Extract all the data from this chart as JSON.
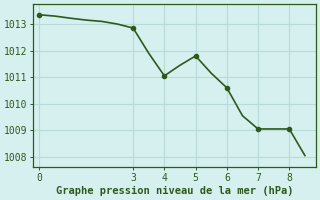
{
  "x": [
    0,
    0.5,
    1.0,
    1.5,
    2.0,
    2.5,
    3.0,
    3.5,
    4.0,
    4.5,
    5.0,
    5.5,
    6.0,
    6.5,
    7.0,
    7.5,
    8.0,
    8.5
  ],
  "y": [
    1013.35,
    1013.3,
    1013.22,
    1013.15,
    1013.1,
    1013.0,
    1012.85,
    1011.9,
    1011.05,
    1011.45,
    1011.8,
    1011.15,
    1010.6,
    1009.55,
    1009.05,
    1009.05,
    1009.05,
    1008.05
  ],
  "marker_x": [
    0,
    3,
    4,
    5,
    6,
    7,
    8
  ],
  "marker_y": [
    1013.35,
    1012.85,
    1011.05,
    1011.8,
    1010.6,
    1009.05,
    1009.05
  ],
  "line_color": "#2d5a1b",
  "marker_color": "#2d5a1b",
  "bg_color": "#d6f0ef",
  "grid_color": "#b8dbd8",
  "spine_color": "#2d5a1b",
  "xlabel": "Graphe pression niveau de la mer (hPa)",
  "xlabel_fontsize": 7.5,
  "yticks": [
    1008,
    1009,
    1010,
    1011,
    1012,
    1013
  ],
  "xticks": [
    0,
    3,
    4,
    5,
    6,
    7,
    8
  ],
  "xlim": [
    -0.2,
    8.85
  ],
  "ylim": [
    1007.6,
    1013.75
  ],
  "tick_fontsize": 7,
  "linewidth": 1.2,
  "markersize": 3.0
}
